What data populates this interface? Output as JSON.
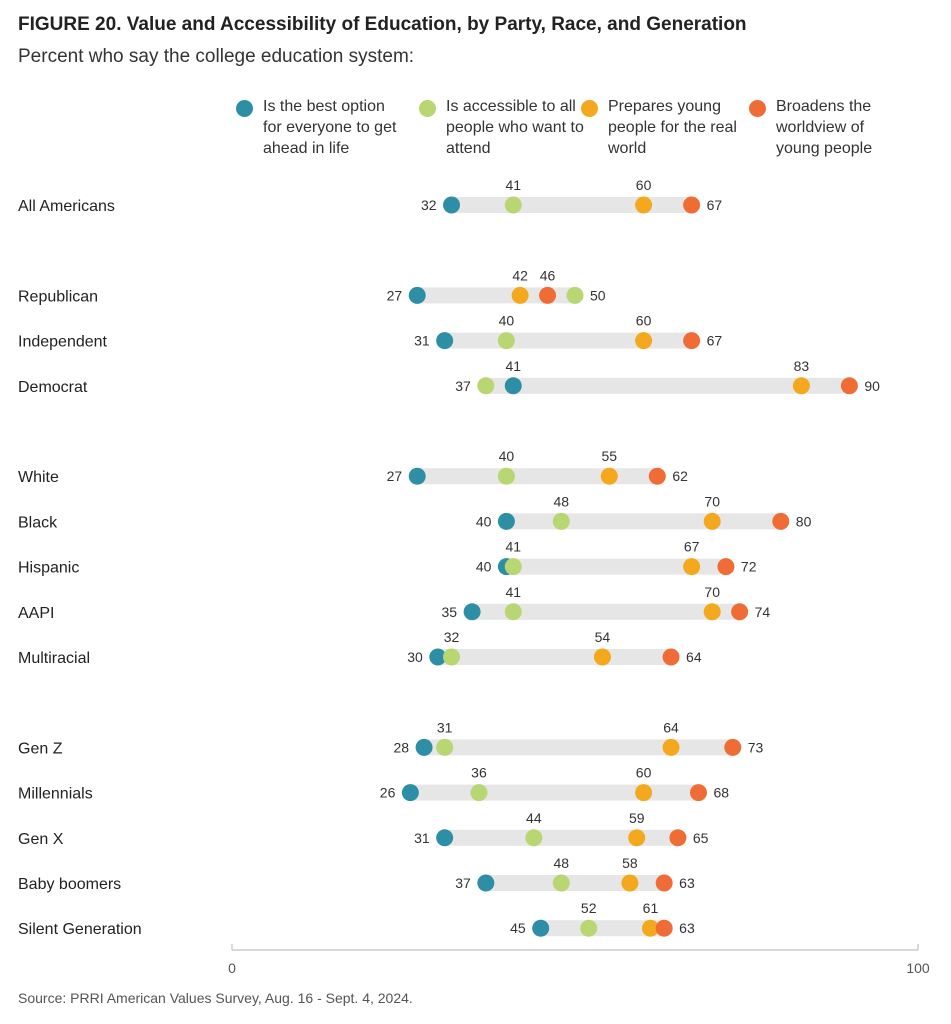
{
  "header": {
    "title": "FIGURE 20.  Value and Accessibility of Education, by Party, Race, and Generation",
    "subtitle": "Percent who say the college education system:"
  },
  "source": "Source: PRRI American Values Survey, Aug. 16 - Sept. 4, 2024.",
  "colors": {
    "best_option": "#2d8ea6",
    "accessible": "#b8d672",
    "prepares": "#f4a81d",
    "broadens": "#ef6c37",
    "track": "#e6e6e6",
    "axis": "#cccccc"
  },
  "chart_data": {
    "type": "dot",
    "title": "FIGURE 20.  Value and Accessibility of Education, by Party, Race, and Generation",
    "subtitle": "Percent who say the college education system:",
    "xlim": [
      0,
      100
    ],
    "x_ticks": [
      "0",
      "100"
    ],
    "legend_placement": "top",
    "series": [
      {
        "key": "best_option",
        "name": "Is the best option for everyone to get ahead in life",
        "color": "#2d8ea6"
      },
      {
        "key": "accessible",
        "name": "Is accessible to all people who want to attend",
        "color": "#b8d672"
      },
      {
        "key": "prepares",
        "name": "Prepares young people for the real world",
        "color": "#f4a81d"
      },
      {
        "key": "broadens",
        "name": "Broadens the worldview of young people",
        "color": "#ef6c37"
      }
    ],
    "groups": [
      {
        "rows": [
          {
            "category": "All Americans",
            "best_option": 32,
            "accessible": 41,
            "prepares": 60,
            "broadens": 67
          }
        ]
      },
      {
        "rows": [
          {
            "category": "Republican",
            "best_option": 27,
            "accessible": 50,
            "prepares": 42,
            "broadens": 46
          },
          {
            "category": "Independent",
            "best_option": 31,
            "accessible": 40,
            "prepares": 60,
            "broadens": 67
          },
          {
            "category": "Democrat",
            "best_option": 41,
            "accessible": 37,
            "prepares": 83,
            "broadens": 90
          }
        ]
      },
      {
        "rows": [
          {
            "category": "White",
            "best_option": 27,
            "accessible": 40,
            "prepares": 55,
            "broadens": 62
          },
          {
            "category": "Black",
            "best_option": 40,
            "accessible": 48,
            "prepares": 70,
            "broadens": 80
          },
          {
            "category": "Hispanic",
            "best_option": 40,
            "accessible": 41,
            "prepares": 67,
            "broadens": 72
          },
          {
            "category": "AAPI",
            "best_option": 35,
            "accessible": 41,
            "prepares": 70,
            "broadens": 74
          },
          {
            "category": "Multiracial",
            "best_option": 30,
            "accessible": 32,
            "prepares": 54,
            "broadens": 64
          }
        ]
      },
      {
        "rows": [
          {
            "category": "Gen Z",
            "best_option": 28,
            "accessible": 31,
            "prepares": 64,
            "broadens": 73
          },
          {
            "category": "Millennials",
            "best_option": 26,
            "accessible": 36,
            "prepares": 60,
            "broadens": 68
          },
          {
            "category": "Gen X",
            "best_option": 31,
            "accessible": 44,
            "prepares": 59,
            "broadens": 65
          },
          {
            "category": "Baby boomers",
            "best_option": 37,
            "accessible": 48,
            "prepares": 58,
            "broadens": 63
          },
          {
            "category": "Silent Generation",
            "best_option": 45,
            "accessible": 52,
            "prepares": 61,
            "broadens": 63
          }
        ]
      }
    ]
  }
}
